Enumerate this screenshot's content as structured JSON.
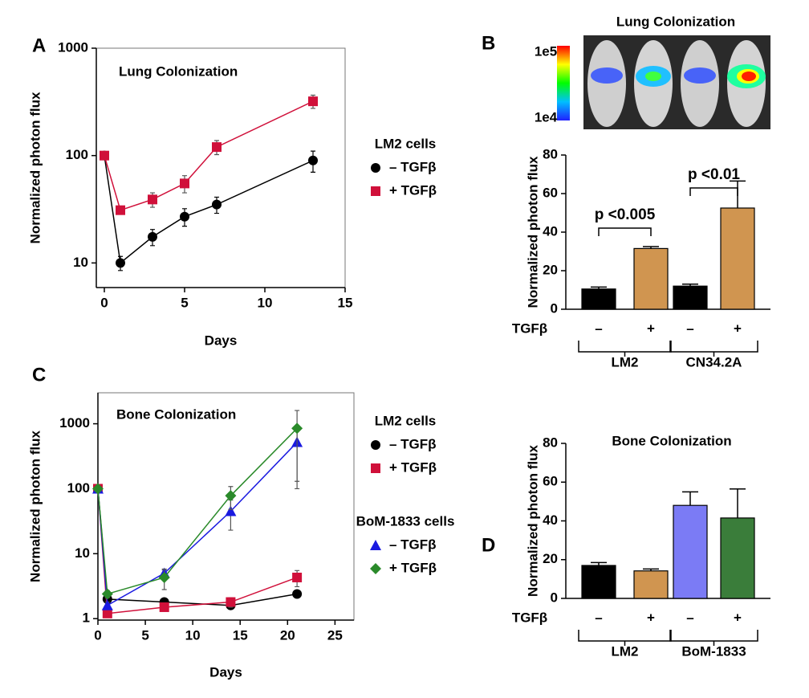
{
  "chart_data": [
    {
      "type": "line",
      "panel": "A",
      "title": "Lung Colonization",
      "x_label": "Days",
      "y_label": "Normalized photon flux",
      "log_y": true,
      "xlim": [
        -0.5,
        15
      ],
      "xticks": [
        0,
        5,
        10,
        15
      ],
      "ylim": [
        5.9,
        1000
      ],
      "yticks": [
        10,
        100,
        1000
      ],
      "x": [
        0,
        1,
        3,
        5,
        7,
        13
      ],
      "series": [
        {
          "name": "– TGFβ",
          "color": "#000000",
          "marker": "circle",
          "values": [
            100,
            10,
            17.5,
            27,
            35,
            90
          ],
          "errors": [
            0,
            1.5,
            3,
            5,
            6,
            20
          ]
        },
        {
          "name": "+ TGFβ",
          "color": "#d0103a",
          "marker": "square",
          "values": [
            100,
            31,
            39,
            55,
            120,
            320
          ],
          "errors": [
            0,
            2,
            6,
            10,
            18,
            45
          ]
        }
      ],
      "legend_groups": [
        {
          "title": "LM2 cells",
          "series": [
            0,
            1
          ]
        }
      ]
    },
    {
      "type": "bar",
      "panel": "B",
      "title": "Lung Colonization",
      "y_label": "Normalized photon flux",
      "colorbar_labels": [
        "1e5",
        "1e4"
      ],
      "ylim": [
        0,
        80
      ],
      "yticks": [
        0,
        20,
        40,
        60,
        80
      ],
      "x_row_label": "TGFβ",
      "categories": [
        "–",
        "+",
        "–",
        "+"
      ],
      "groups": [
        "LM2",
        "CN34.2A"
      ],
      "values": [
        10.5,
        31.5,
        12,
        52.5
      ],
      "errors": [
        1,
        1,
        1,
        14
      ],
      "colors": [
        "#000000",
        "#d09550",
        "#000000",
        "#d09550"
      ],
      "annotations": [
        {
          "text": "p <0.005",
          "between": [
            0,
            1
          ]
        },
        {
          "text": "p <0.01",
          "between": [
            2,
            3
          ]
        }
      ]
    },
    {
      "type": "line",
      "panel": "C",
      "title": "Bone Colonization",
      "x_label": "Days",
      "y_label": "Normalized photon flux",
      "log_y": true,
      "xlim": [
        0,
        27
      ],
      "xticks": [
        0,
        5,
        10,
        15,
        20,
        25
      ],
      "ylim": [
        0.95,
        3000
      ],
      "yticks": [
        1,
        10,
        100,
        1000
      ],
      "x": [
        0,
        1,
        7,
        14,
        21
      ],
      "series": [
        {
          "name": "– TGFβ",
          "color": "#000000",
          "marker": "circle",
          "values": [
            100,
            2.0,
            1.8,
            1.6,
            2.4
          ],
          "errors": [
            0,
            0.2,
            0.1,
            0.2,
            0.3
          ]
        },
        {
          "name": "+ TGFβ",
          "color": "#d0103a",
          "marker": "square",
          "values": [
            100,
            1.2,
            1.5,
            1.8,
            4.3
          ],
          "errors": [
            0,
            0.1,
            0.1,
            0.3,
            1.2
          ]
        },
        {
          "name": "– TGFβ",
          "color": "#1a1ae0",
          "marker": "triangle",
          "values": [
            100,
            1.6,
            5.0,
            45,
            520
          ],
          "errors": [
            0,
            0.2,
            0.6,
            22,
            390
          ]
        },
        {
          "name": "+ TGFβ",
          "color": "#2a8a2a",
          "marker": "diamond",
          "values": [
            100,
            2.4,
            4.3,
            78,
            850
          ],
          "errors": [
            0,
            0.3,
            1.5,
            30,
            750
          ]
        }
      ],
      "legend_groups": [
        {
          "title": "LM2 cells",
          "series": [
            0,
            1
          ]
        },
        {
          "title": "BoM-1833 cells",
          "series": [
            2,
            3
          ]
        }
      ]
    },
    {
      "type": "bar",
      "panel": "D",
      "title": "Bone Colonization",
      "y_label": "Normalized photon flux",
      "ylim": [
        0,
        80
      ],
      "yticks": [
        0,
        20,
        40,
        60,
        80
      ],
      "x_row_label": "TGFβ",
      "categories": [
        "–",
        "+",
        "–",
        "+"
      ],
      "groups": [
        "LM2",
        "BoM-1833"
      ],
      "values": [
        17,
        14.2,
        48,
        41.5
      ],
      "errors": [
        1.5,
        1,
        7,
        15
      ],
      "colors": [
        "#000000",
        "#d09550",
        "#7b7bf5",
        "#3a7d3a"
      ]
    }
  ]
}
